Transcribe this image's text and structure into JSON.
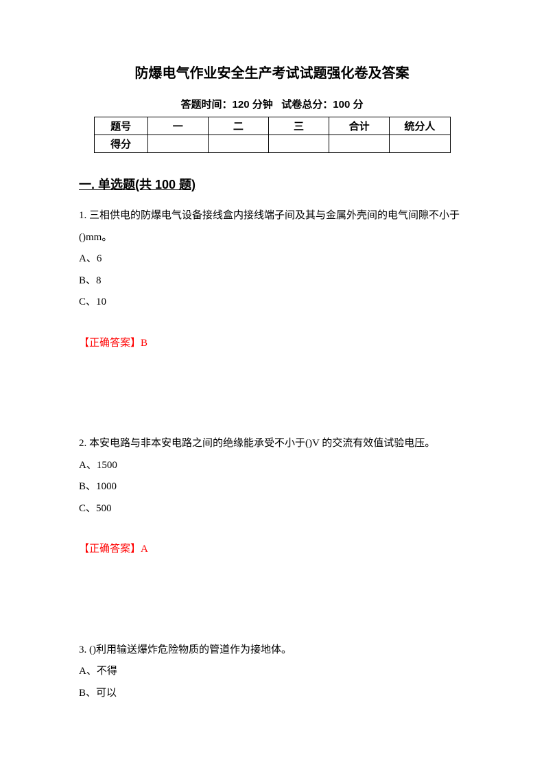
{
  "title": "防爆电气作业安全生产考试试题强化卷及答案",
  "subtitle_time_label": "答题时间：",
  "subtitle_time_value": "120 分钟",
  "subtitle_score_label": "试卷总分：",
  "subtitle_score_value": "100 分",
  "table": {
    "header_label": "题号",
    "col1": "一",
    "col2": "二",
    "col3": "三",
    "col_total": "合计",
    "col_scorer": "统分人",
    "score_label": "得分"
  },
  "section_heading": "一. 单选题(共 100 题)",
  "q1": {
    "text": "1. 三相供电的防爆电气设备接线盒内接线端子间及其与金属外壳间的电气间隙不小于()mm。",
    "optA": "A、6",
    "optB": "B、8",
    "optC": "C、10",
    "answer": "【正确答案】B"
  },
  "q2": {
    "text": "2. 本安电路与非本安电路之间的绝缘能承受不小于()V 的交流有效值试验电压。",
    "optA": "A、1500",
    "optB": "B、1000",
    "optC": "C、500",
    "answer": "【正确答案】A"
  },
  "q3": {
    "text": "3. ()利用输送爆炸危险物质的管道作为接地体。",
    "optA": "A、不得",
    "optB": "B、可以"
  }
}
